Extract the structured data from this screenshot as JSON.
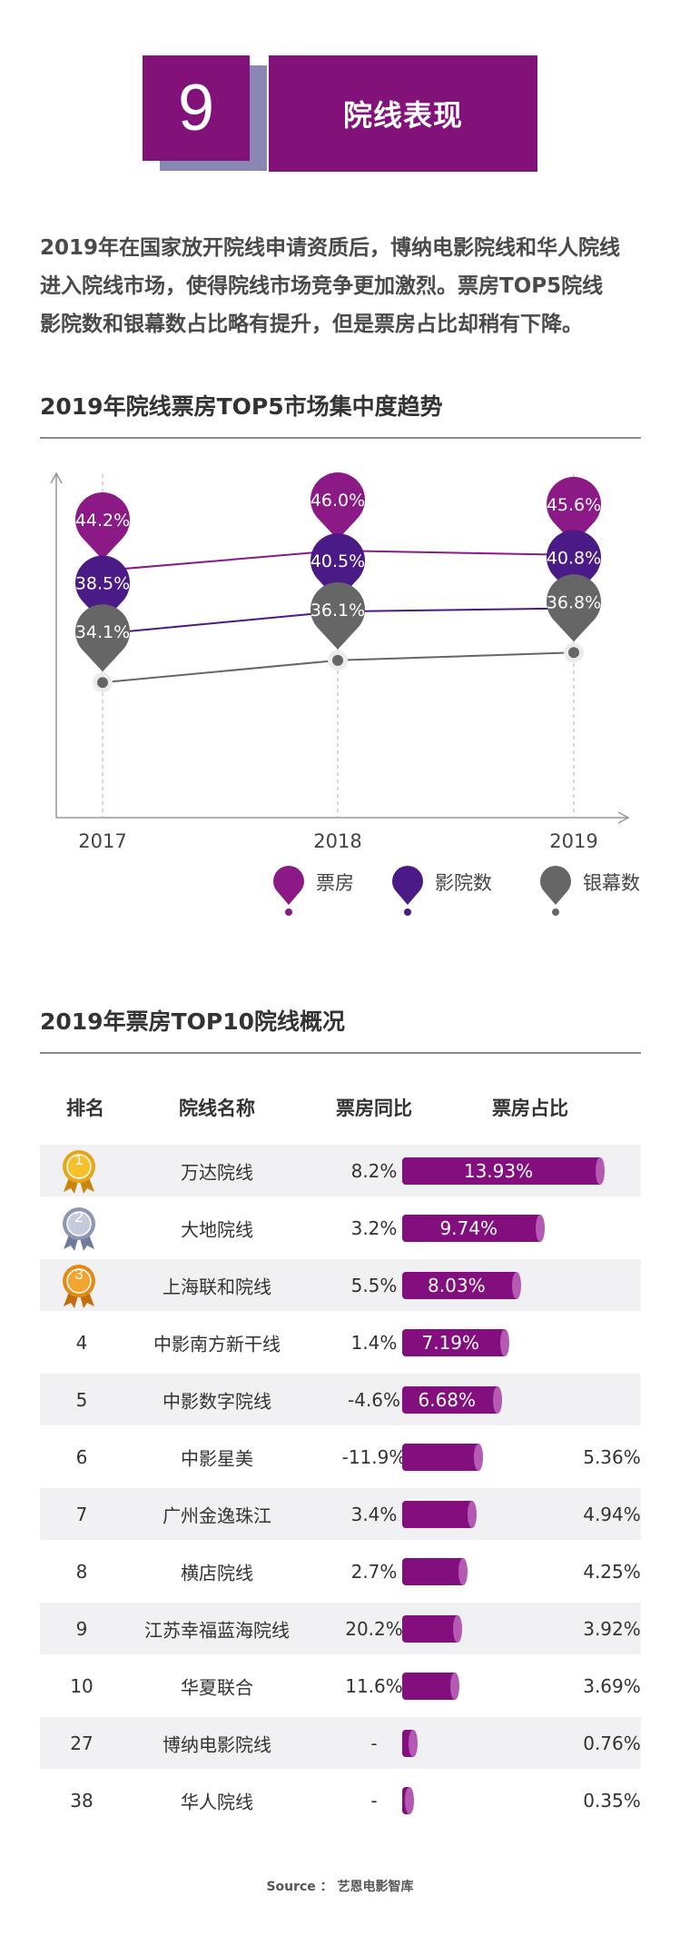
{
  "header": {
    "number": "9",
    "title": "院线表现"
  },
  "intro": [
    "2019年在国家放开院线申请资质后，博纳电影院线和华人院线",
    "进入院线市场，使得院线市场竞争更加激烈。票房TOP5院线",
    "影院数和银幕数占比略有提升，但是票房占比却稍有下降。"
  ],
  "chart_section_title": "2019年院线票房TOP5市场集中度趋势",
  "chart_data": [
    {
      "type": "line",
      "title": "2019年院线票房TOP5市场集中度趋势",
      "categories": [
        "2017",
        "2018",
        "2019"
      ],
      "series": [
        {
          "name": "票房",
          "values": [
            44.2,
            46.0,
            45.6
          ],
          "labels": [
            "44.2%",
            "46.0%",
            "45.6%"
          ],
          "color": "#8b1a87"
        },
        {
          "name": "影院数",
          "values": [
            38.5,
            40.5,
            40.8
          ],
          "labels": [
            "38.5%",
            "40.5%",
            "40.8%"
          ],
          "color": "#4a1a86"
        },
        {
          "name": "银幕数",
          "values": [
            34.1,
            36.1,
            36.8
          ],
          "labels": [
            "34.1%",
            "36.1%",
            "36.8%"
          ],
          "color": "#666666"
        }
      ],
      "legend": "bottom-right"
    },
    {
      "type": "table",
      "title": "2019年票房TOP10院线概况",
      "columns": [
        "排名",
        "院线名称",
        "票房同比",
        "票房占比"
      ],
      "rows": [
        {
          "rank": "1",
          "name": "万达院线",
          "yoy": "8.2%",
          "share": 13.93,
          "share_label": "13.93%",
          "medal": "gold"
        },
        {
          "rank": "2",
          "name": "大地院线",
          "yoy": "3.2%",
          "share": 9.74,
          "share_label": "9.74%",
          "medal": "silver"
        },
        {
          "rank": "3",
          "name": "上海联和院线",
          "yoy": "5.5%",
          "share": 8.03,
          "share_label": "8.03%",
          "medal": "bronze"
        },
        {
          "rank": "4",
          "name": "中影南方新干线",
          "yoy": "1.4%",
          "share": 7.19,
          "share_label": "7.19%"
        },
        {
          "rank": "5",
          "name": "中影数字院线",
          "yoy": "-4.6%",
          "share": 6.68,
          "share_label": "6.68%"
        },
        {
          "rank": "6",
          "name": "中影星美",
          "yoy": "-11.9%",
          "share": 5.36,
          "share_label": "5.36%"
        },
        {
          "rank": "7",
          "name": "广州金逸珠江",
          "yoy": "3.4%",
          "share": 4.94,
          "share_label": "4.94%"
        },
        {
          "rank": "8",
          "name": "横店院线",
          "yoy": "2.7%",
          "share": 4.25,
          "share_label": "4.25%"
        },
        {
          "rank": "9",
          "name": "江苏幸福蓝海院线",
          "yoy": "20.2%",
          "share": 3.92,
          "share_label": "3.92%"
        },
        {
          "rank": "10",
          "name": "华夏联合",
          "yoy": "11.6%",
          "share": 3.69,
          "share_label": "3.69%"
        },
        {
          "rank": "27",
          "name": "博纳电影院线",
          "yoy": "-",
          "share": 0.76,
          "share_label": "0.76%"
        },
        {
          "rank": "38",
          "name": "华人院线",
          "yoy": "-",
          "share": 0.35,
          "share_label": "0.35%"
        }
      ]
    }
  ],
  "table_section_title": "2019年票房TOP10院线概况",
  "colors": {
    "brand": "#82127a",
    "bar": "#830f7f",
    "bar_cap": "#b45ab3",
    "shadow": "#8a87b5"
  },
  "source": "Source ： 艺恩电影智库"
}
